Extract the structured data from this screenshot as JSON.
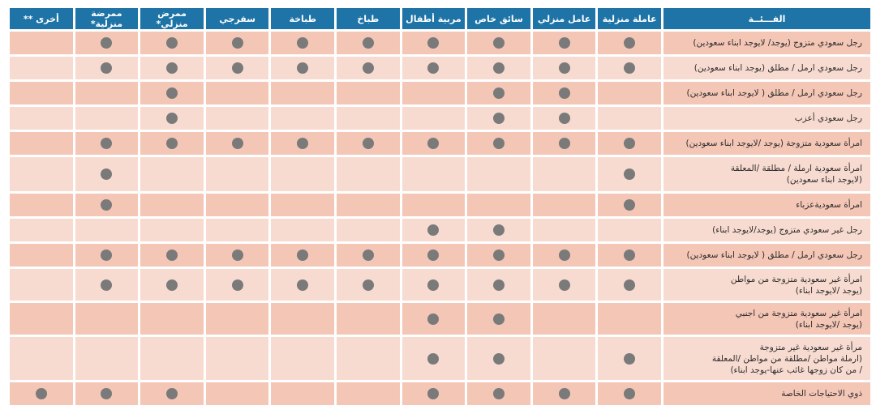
{
  "table": {
    "headers": [
      "الفـــئــة",
      "عاملة منزلية",
      "عامل منزلي",
      "سائق خاص",
      "مربية أطفال",
      "طباخ",
      "طباخة",
      "سفرجي",
      "ممرض منزلي*",
      "ممرضة منزلية*",
      "أخرى **"
    ],
    "rows": [
      {
        "label": [
          "رجل سعودي متزوج (يوجد/ لايوجد ابناء سعودين)"
        ],
        "marks": [
          1,
          1,
          1,
          1,
          1,
          1,
          1,
          1,
          1,
          0
        ]
      },
      {
        "label": [
          "رجل سعودي ارمل / مطلق (يوجد ابناء سعودين)"
        ],
        "marks": [
          1,
          1,
          1,
          1,
          1,
          1,
          1,
          1,
          1,
          0
        ]
      },
      {
        "label": [
          "رجل سعودي ارمل / مطلق ( لايوجد ابناء سعودين)"
        ],
        "marks": [
          0,
          1,
          1,
          0,
          0,
          0,
          0,
          1,
          0,
          0
        ]
      },
      {
        "label": [
          "رجل سعودي أعزب"
        ],
        "marks": [
          0,
          1,
          1,
          0,
          0,
          0,
          0,
          1,
          0,
          0
        ]
      },
      {
        "label": [
          "امرأة سعودية متزوجة (يوجد /لايوجد ابناء سعودين)"
        ],
        "marks": [
          1,
          1,
          1,
          1,
          1,
          1,
          1,
          1,
          1,
          0
        ]
      },
      {
        "label": [
          "امرأة سعودية ارملة / مطلقة /المعلقة",
          "(لايوجد ابناء سعودين)"
        ],
        "marks": [
          1,
          0,
          0,
          0,
          0,
          0,
          0,
          0,
          1,
          0
        ]
      },
      {
        "label": [
          "امرأة سعوديةعزباء"
        ],
        "marks": [
          1,
          0,
          0,
          0,
          0,
          0,
          0,
          0,
          1,
          0
        ]
      },
      {
        "label": [
          "رجل غير سعودي متزوج (يوجد/لايوجد ابناء)"
        ],
        "marks": [
          0,
          0,
          1,
          1,
          0,
          0,
          0,
          0,
          0,
          0
        ]
      },
      {
        "label": [
          "رجل سعودي ارمل / مطلق ( لايوجد ابناء سعودين)"
        ],
        "marks": [
          1,
          1,
          1,
          1,
          1,
          1,
          1,
          1,
          1,
          0
        ]
      },
      {
        "label": [
          "امرأة غير سعودية متزوجة من مواطن",
          "(يوجد /لايوجد ابناء)"
        ],
        "marks": [
          1,
          1,
          1,
          1,
          1,
          1,
          1,
          1,
          1,
          0
        ]
      },
      {
        "label": [
          "امرأة غير سعودية متزوجة من اجنبي",
          "(يوجد /لايوجد ابناء)"
        ],
        "marks": [
          0,
          0,
          1,
          1,
          0,
          0,
          0,
          0,
          0,
          0
        ]
      },
      {
        "label": [
          "مرأة غير سعودية غير متزوجة",
          "(ارملة مواطن /مطلقة من مواطن /المعلقة",
          "/ من كان زوجها غائب عنها-يوجد ابناء)"
        ],
        "marks": [
          1,
          0,
          1,
          1,
          0,
          0,
          0,
          0,
          0,
          0
        ]
      },
      {
        "label": [
          "ذوي الاحتياجات الخاصة"
        ],
        "marks": [
          1,
          1,
          1,
          1,
          0,
          0,
          0,
          1,
          1,
          1
        ]
      }
    ]
  },
  "colors": {
    "header_bg": "#1e73a7",
    "row_odd": "#f4c6b6",
    "row_even": "#f8dbd0",
    "dot": "#7a7a7a"
  },
  "icons": {
    "mark": "filled-circle-icon"
  }
}
